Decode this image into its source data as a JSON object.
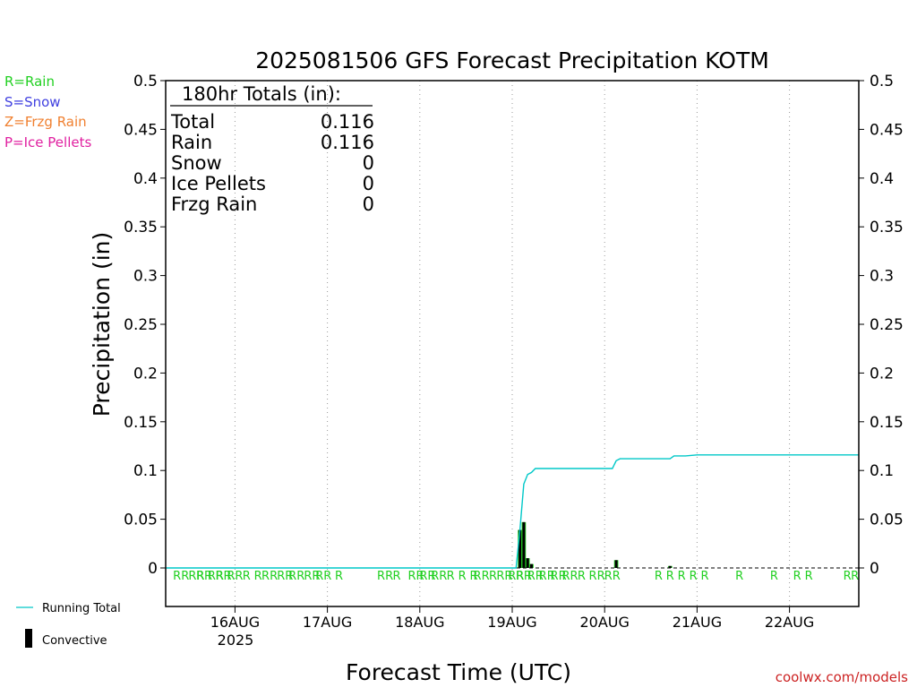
{
  "title": "2025081506 GFS Forecast Precipitation KOTM",
  "ylabel": "Precipitation (in)",
  "xlabel": "Forecast Time (UTC)",
  "credit": "coolwx.com/models",
  "legend_types": [
    {
      "label": "R=Rain",
      "color": "#22d022"
    },
    {
      "label": "S=Snow",
      "color": "#4040e0"
    },
    {
      "label": "Z=Frzg Rain",
      "color": "#f08030"
    },
    {
      "label": "P=Ice Pellets",
      "color": "#e020a0"
    }
  ],
  "legend_series": {
    "running_total": {
      "label": "Running Total",
      "color": "#00c8c8"
    },
    "convective": {
      "label": "Convective",
      "color": "#000000"
    }
  },
  "totals": {
    "header": "180hr Totals (in):",
    "rows": [
      {
        "label": "Total",
        "value": "0.116"
      },
      {
        "label": "Rain",
        "value": "0.116"
      },
      {
        "label": "Snow",
        "value": "0"
      },
      {
        "label": "Ice Pellets",
        "value": "0"
      },
      {
        "label": "Frzg Rain",
        "value": "0"
      }
    ]
  },
  "year_label": "2025",
  "chart_data": {
    "type": "bar",
    "title": "2025081506 GFS Forecast Precipitation KOTM",
    "xlabel": "Forecast Time (UTC)",
    "ylabel": "Precipitation (in)",
    "x_unit": "hours after 2025-08-15 06 UTC",
    "xlim": [
      0,
      180
    ],
    "ylim": [
      0,
      0.5
    ],
    "yticks": [
      0,
      0.05,
      0.1,
      0.15,
      0.2,
      0.25,
      0.3,
      0.35,
      0.4,
      0.45,
      0.5
    ],
    "xticks": [
      {
        "hour": 18,
        "label": "16AUG"
      },
      {
        "hour": 42,
        "label": "17AUG"
      },
      {
        "hour": 66,
        "label": "18AUG"
      },
      {
        "hour": 90,
        "label": "19AUG"
      },
      {
        "hour": 114,
        "label": "20AUG"
      },
      {
        "hour": 138,
        "label": "21AUG"
      },
      {
        "hour": 162,
        "label": "22AUG"
      }
    ],
    "precip_bars": [
      {
        "hour": 92,
        "value": 0.039,
        "color": "#22d022"
      },
      {
        "hour": 93,
        "value": 0.047,
        "color": "#22d022"
      },
      {
        "hour": 94,
        "value": 0.01,
        "color": "#22d022"
      },
      {
        "hour": 95,
        "value": 0.004,
        "color": "#22d022"
      },
      {
        "hour": 117,
        "value": 0.008,
        "color": "#22d022"
      },
      {
        "hour": 131,
        "value": 0.002,
        "color": "#22d022"
      }
    ],
    "convective_bars": [
      {
        "hour": 92,
        "value": 0.039
      },
      {
        "hour": 93,
        "value": 0.047
      },
      {
        "hour": 94,
        "value": 0.01
      },
      {
        "hour": 95,
        "value": 0.004
      },
      {
        "hour": 117,
        "value": 0.008
      },
      {
        "hour": 131,
        "value": 0.002
      }
    ],
    "running_total": {
      "name": "Running Total",
      "points": [
        [
          0,
          0
        ],
        [
          91,
          0
        ],
        [
          92,
          0.039
        ],
        [
          93,
          0.086
        ],
        [
          94,
          0.096
        ],
        [
          95,
          0.098
        ],
        [
          96,
          0.102
        ],
        [
          116,
          0.102
        ],
        [
          117,
          0.11
        ],
        [
          118,
          0.112
        ],
        [
          131,
          0.112
        ],
        [
          132,
          0.115
        ],
        [
          135,
          0.115
        ],
        [
          138,
          0.116
        ],
        [
          180,
          0.116
        ]
      ]
    },
    "ptype_labels": [
      {
        "hour": 4,
        "text": "RR"
      },
      {
        "hour": 8,
        "text": "RR"
      },
      {
        "hour": 10,
        "text": "RR"
      },
      {
        "hour": 13,
        "text": "RR"
      },
      {
        "hour": 15,
        "text": "RR"
      },
      {
        "hour": 18,
        "text": "RR"
      },
      {
        "hour": 21,
        "text": "R"
      },
      {
        "hour": 24,
        "text": "R"
      },
      {
        "hour": 27,
        "text": "RR"
      },
      {
        "hour": 31,
        "text": "RR"
      },
      {
        "hour": 34,
        "text": "RR"
      },
      {
        "hour": 38,
        "text": "RR"
      },
      {
        "hour": 41,
        "text": "RR"
      },
      {
        "hour": 45,
        "text": "R"
      },
      {
        "hour": 57,
        "text": "RR"
      },
      {
        "hour": 60,
        "text": "R"
      },
      {
        "hour": 65,
        "text": "RR"
      },
      {
        "hour": 68,
        "text": "RR"
      },
      {
        "hour": 71,
        "text": "RR"
      },
      {
        "hour": 74,
        "text": "R"
      },
      {
        "hour": 77,
        "text": "R"
      },
      {
        "hour": 80,
        "text": "R"
      },
      {
        "hour": 82,
        "text": "RR"
      },
      {
        "hour": 85,
        "text": "R"
      },
      {
        "hour": 88,
        "text": "RR"
      },
      {
        "hour": 91,
        "text": "RR"
      },
      {
        "hour": 93,
        "text": "RR"
      },
      {
        "hour": 96,
        "text": "RR"
      },
      {
        "hour": 99,
        "text": "RR"
      },
      {
        "hour": 102,
        "text": "RR"
      },
      {
        "hour": 105,
        "text": "RR"
      },
      {
        "hour": 108,
        "text": "R"
      },
      {
        "hour": 112,
        "text": "RR"
      },
      {
        "hour": 116,
        "text": "RR"
      },
      {
        "hour": 128,
        "text": "R"
      },
      {
        "hour": 131,
        "text": "R"
      },
      {
        "hour": 134,
        "text": "R"
      },
      {
        "hour": 137,
        "text": "R"
      },
      {
        "hour": 140,
        "text": "R"
      },
      {
        "hour": 149,
        "text": "R"
      },
      {
        "hour": 158,
        "text": "R"
      },
      {
        "hour": 164,
        "text": "R"
      },
      {
        "hour": 167,
        "text": "R"
      },
      {
        "hour": 177,
        "text": "R"
      },
      {
        "hour": 179,
        "text": "R"
      }
    ]
  }
}
